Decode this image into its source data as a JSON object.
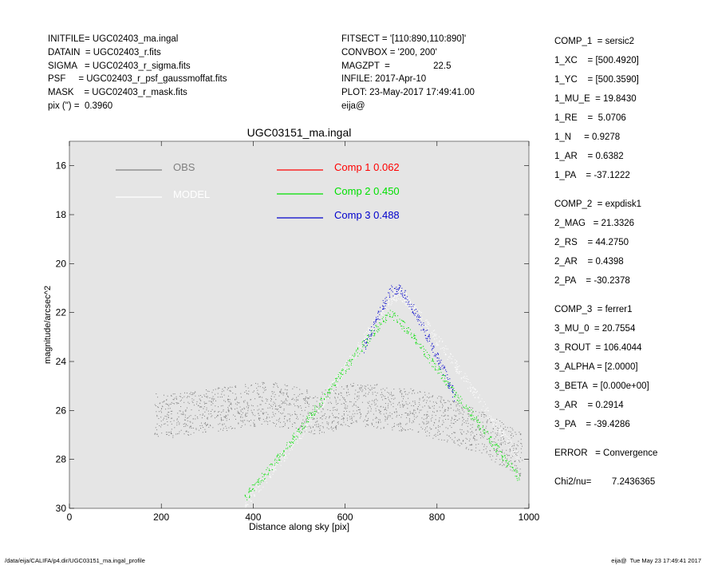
{
  "header_left": [
    "INITFILE= UGC02403_ma.ingal",
    "DATAIN  = UGC02403_r.fits",
    "SIGMA   = UGC02403_r_sigma.fits",
    "PSF     = UGC02403_r_psf_gaussmoffat.fits",
    "MASK    = UGC02403_r_mask.fits",
    "pix (\") =  0.3960"
  ],
  "header_mid": [
    "FITSECT = '[110:890,110:890]'",
    "CONVBOX = '200, 200'",
    "MAGZPT  =                 22.5",
    "INFILE: 2017-Apr-10",
    "PLOT: 23-May-2017 17:49:41.00",
    "eija@"
  ],
  "params": [
    "COMP_1  = sersic2",
    "1_XC    = [500.4920]",
    "1_YC    = [500.3590]",
    "1_MU_E  = 19.8430",
    "1_RE    =  5.0706",
    "1_N     = 0.9278",
    "1_AR    = 0.6382",
    "1_PA    = -37.1222",
    "",
    "COMP_2  = expdisk1",
    "2_MAG   = 21.3326",
    "2_RS    = 44.2750",
    "2_AR    = 0.4398",
    "2_PA    = -30.2378",
    "",
    "COMP_3  = ferrer1",
    "3_MU_0  = 20.7554",
    "3_ROUT  = 106.4044",
    "3_ALPHA = [2.0000]",
    "3_BETA  = [0.000e+00]",
    "3_AR    = 0.2914",
    "3_PA    = -39.4286",
    "",
    "ERROR   = Convergence",
    "",
    "Chi2/nu=        7.2436365"
  ],
  "footer": {
    "left": "/data/eija/CALIFA/p4.dir/UGC03151_ma.ingal_profile",
    "right": "eija@  Tue May 23 17:49:41 2017"
  },
  "colors": {
    "plot_bg": "#e5e5e5",
    "obs": "#808080",
    "model": "#ffffff",
    "comp1": "#ff0000",
    "comp2": "#00e000",
    "comp3": "#0000cc"
  },
  "chart_data": {
    "type": "scatter",
    "title": "UGC03151_ma.ingal",
    "xlabel": "Distance along sky [pix]",
    "ylabel": "magnitude/arcsec^2",
    "xlim": [
      0,
      1000
    ],
    "ylim": [
      30,
      15
    ],
    "y_inverted": true,
    "xticks": [
      0,
      200,
      400,
      600,
      800,
      1000
    ],
    "yticks": [
      16,
      18,
      20,
      22,
      24,
      26,
      28,
      30
    ],
    "grid": false,
    "legend": [
      {
        "label": "OBS",
        "color": "#808080"
      },
      {
        "label": "MODEL",
        "color": "#ffffff"
      },
      {
        "label": "Comp 1",
        "value": "0.062",
        "color": "#ff0000"
      },
      {
        "label": "Comp 2",
        "value": "0.450",
        "color": "#00e000"
      },
      {
        "label": "Comp 3",
        "value": "0.488",
        "color": "#0000cc"
      }
    ],
    "series": [
      {
        "name": "OBS",
        "style": "points",
        "x": [
          185,
          225,
          265,
          305,
          345,
          385,
          425,
          465,
          505,
          545,
          585,
          625,
          665,
          705,
          745,
          785,
          825,
          865,
          905,
          945,
          985
        ],
        "y": [
          26.2,
          26.2,
          26.1,
          26.0,
          25.9,
          25.8,
          25.7,
          25.8,
          26.0,
          26.1,
          25.9,
          25.7,
          25.8,
          25.9,
          26.0,
          26.2,
          26.4,
          26.7,
          27.0,
          27.4,
          27.8
        ]
      },
      {
        "name": "MODEL",
        "style": "points",
        "x": [
          380,
          420,
          460,
          500,
          540,
          580,
          620,
          660,
          700,
          720,
          740,
          780,
          820,
          860,
          900,
          940,
          980
        ],
        "y": [
          29.8,
          28.9,
          28.0,
          27.0,
          25.9,
          24.8,
          23.7,
          22.5,
          21.4,
          21.2,
          21.6,
          22.6,
          23.6,
          24.7,
          25.8,
          26.9,
          28.0
        ]
      },
      {
        "name": "Comp 2",
        "style": "points",
        "x": [
          380,
          420,
          460,
          500,
          540,
          580,
          620,
          660,
          700,
          740,
          780,
          820,
          860,
          900,
          940,
          980
        ],
        "y": [
          29.6,
          28.7,
          27.8,
          26.8,
          25.8,
          24.8,
          23.8,
          22.8,
          22.0,
          22.8,
          23.8,
          24.8,
          25.8,
          26.8,
          27.8,
          28.8
        ]
      },
      {
        "name": "Comp 3",
        "style": "points",
        "x": [
          640,
          660,
          680,
          700,
          720,
          740,
          760,
          780,
          800,
          820,
          840
        ],
        "y": [
          23.4,
          22.6,
          21.8,
          21.1,
          21.0,
          21.6,
          22.3,
          23.0,
          23.8,
          24.6,
          25.5
        ]
      }
    ]
  }
}
